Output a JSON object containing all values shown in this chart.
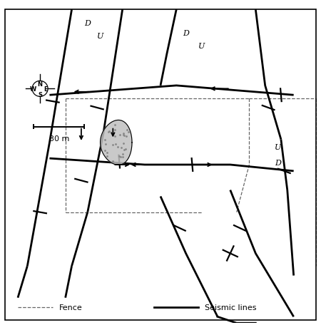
{
  "figsize": [
    4.5,
    4.64
  ],
  "dpi": 100,
  "bg_color": "white",
  "lw_seismic": 2.0,
  "lw_fence": 0.9,
  "lw_border": 1.2,
  "seismic_color": "black",
  "fence_color": "#666666",
  "xlim": [
    0,
    100
  ],
  "ylim": [
    0,
    100
  ],
  "compass_x": 12,
  "compass_y": 74,
  "compass_r": 4.5
}
